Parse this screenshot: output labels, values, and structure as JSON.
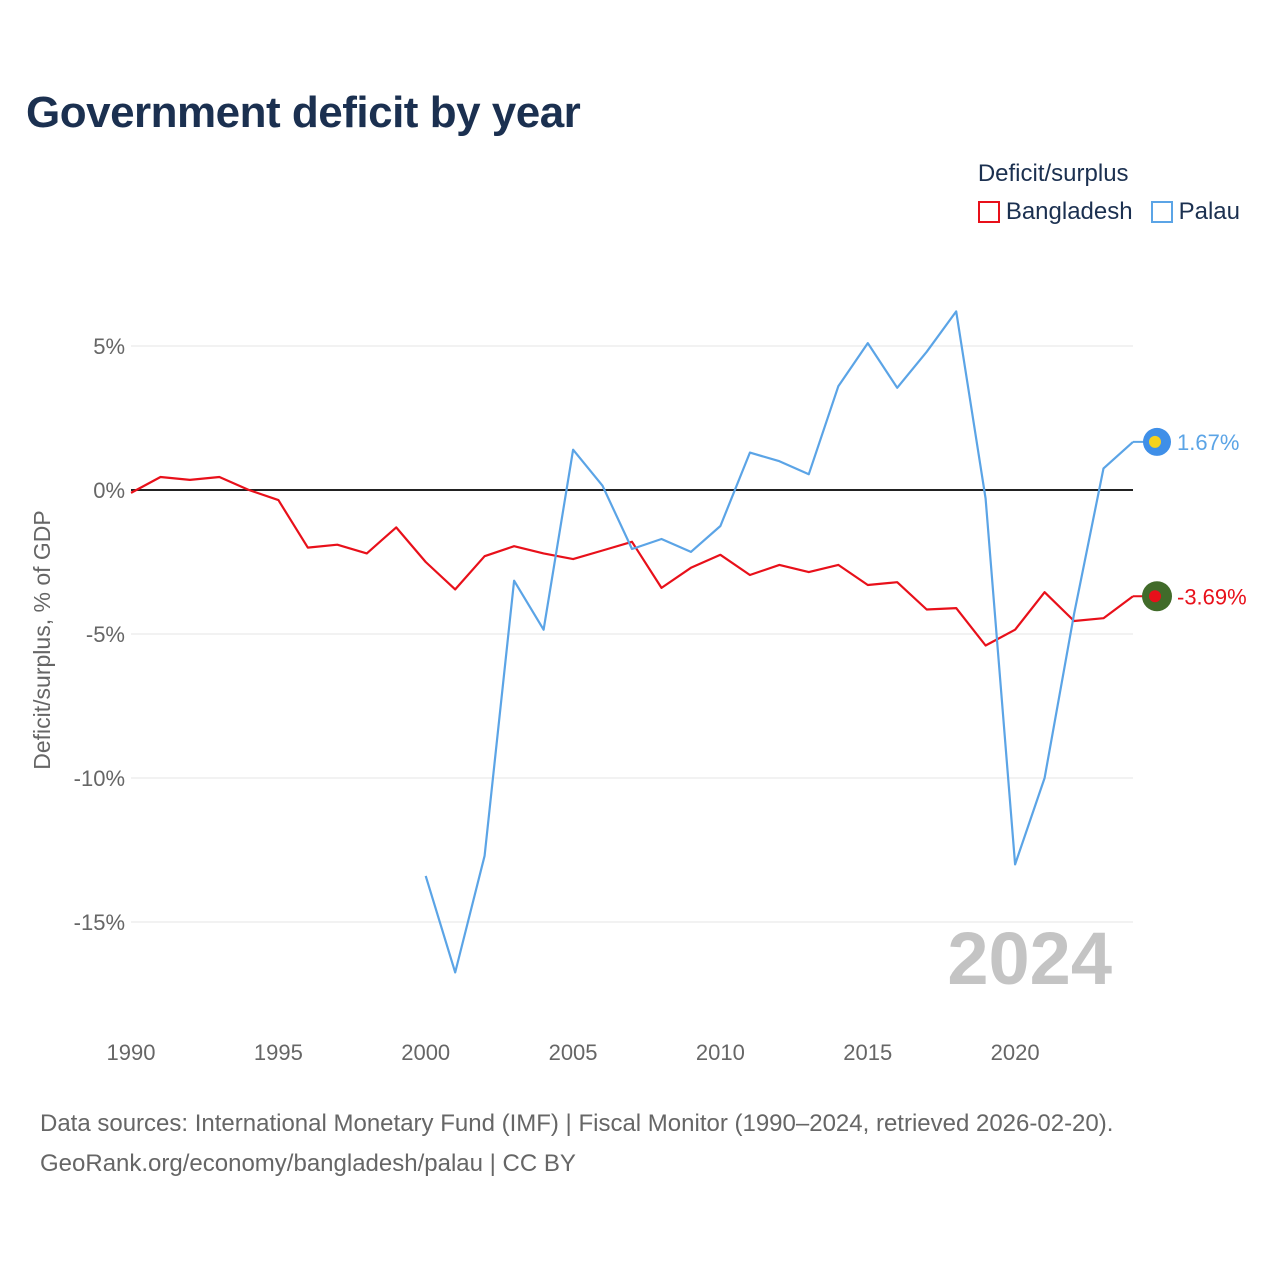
{
  "title": "Government deficit by year",
  "legend": {
    "title": "Deficit/surplus",
    "items": [
      {
        "label": "Bangladesh",
        "color": "#e8101a"
      },
      {
        "label": "Palau",
        "color": "#5ba4e6"
      }
    ]
  },
  "chart_data": {
    "type": "line",
    "ylabel": "Deficit/surplus, % of GDP",
    "xlabel": "",
    "xlim": [
      1990,
      2024
    ],
    "ylim": [
      -18,
      8
    ],
    "x_ticks": [
      1990,
      1995,
      2000,
      2005,
      2010,
      2015,
      2020
    ],
    "y_ticks": [
      5,
      0,
      -5,
      -10,
      -15
    ],
    "y_tick_labels": [
      "5%",
      "0%",
      "-5%",
      "-10%",
      "-15%"
    ],
    "watermark_year": "2024",
    "series": [
      {
        "name": "Bangladesh",
        "color": "#e8101a",
        "end_label": "-3.69%",
        "flag": "bangladesh",
        "x": [
          1990,
          1991,
          1992,
          1993,
          1994,
          1995,
          1996,
          1997,
          1998,
          1999,
          2000,
          2001,
          2002,
          2003,
          2004,
          2005,
          2006,
          2007,
          2008,
          2009,
          2010,
          2011,
          2012,
          2013,
          2014,
          2015,
          2016,
          2017,
          2018,
          2019,
          2020,
          2021,
          2022,
          2023,
          2024
        ],
        "values": [
          -0.1,
          0.45,
          0.35,
          0.45,
          0.0,
          -0.35,
          -2.0,
          -1.9,
          -2.2,
          -1.3,
          -2.5,
          -3.45,
          -2.3,
          -1.95,
          -2.2,
          -2.4,
          -2.1,
          -1.8,
          -3.4,
          -2.7,
          -2.25,
          -2.95,
          -2.6,
          -2.85,
          -2.6,
          -3.3,
          -3.2,
          -4.15,
          -4.1,
          -5.4,
          -4.85,
          -3.55,
          -4.55,
          -4.45,
          -3.69
        ]
      },
      {
        "name": "Palau",
        "color": "#5ba4e6",
        "end_label": "1.67%",
        "flag": "palau",
        "x": [
          2000,
          2001,
          2002,
          2003,
          2004,
          2005,
          2006,
          2007,
          2008,
          2009,
          2010,
          2011,
          2012,
          2013,
          2014,
          2015,
          2016,
          2017,
          2018,
          2019,
          2020,
          2021,
          2022,
          2023,
          2024
        ],
        "values": [
          -13.4,
          -16.75,
          -12.7,
          -3.15,
          -4.85,
          1.4,
          0.15,
          -2.05,
          -1.7,
          -2.15,
          -1.25,
          1.3,
          1.0,
          0.55,
          3.6,
          5.1,
          3.55,
          4.8,
          6.2,
          -0.3,
          -13.0,
          -10.0,
          -4.3,
          0.75,
          1.67
        ]
      }
    ]
  },
  "footer": {
    "line1": "Data sources: International Monetary Fund (IMF) | Fiscal Monitor (1990–2024, retrieved 2026-02-20).",
    "line2": "GeoRank.org/economy/bangladesh/palau | CC BY"
  }
}
